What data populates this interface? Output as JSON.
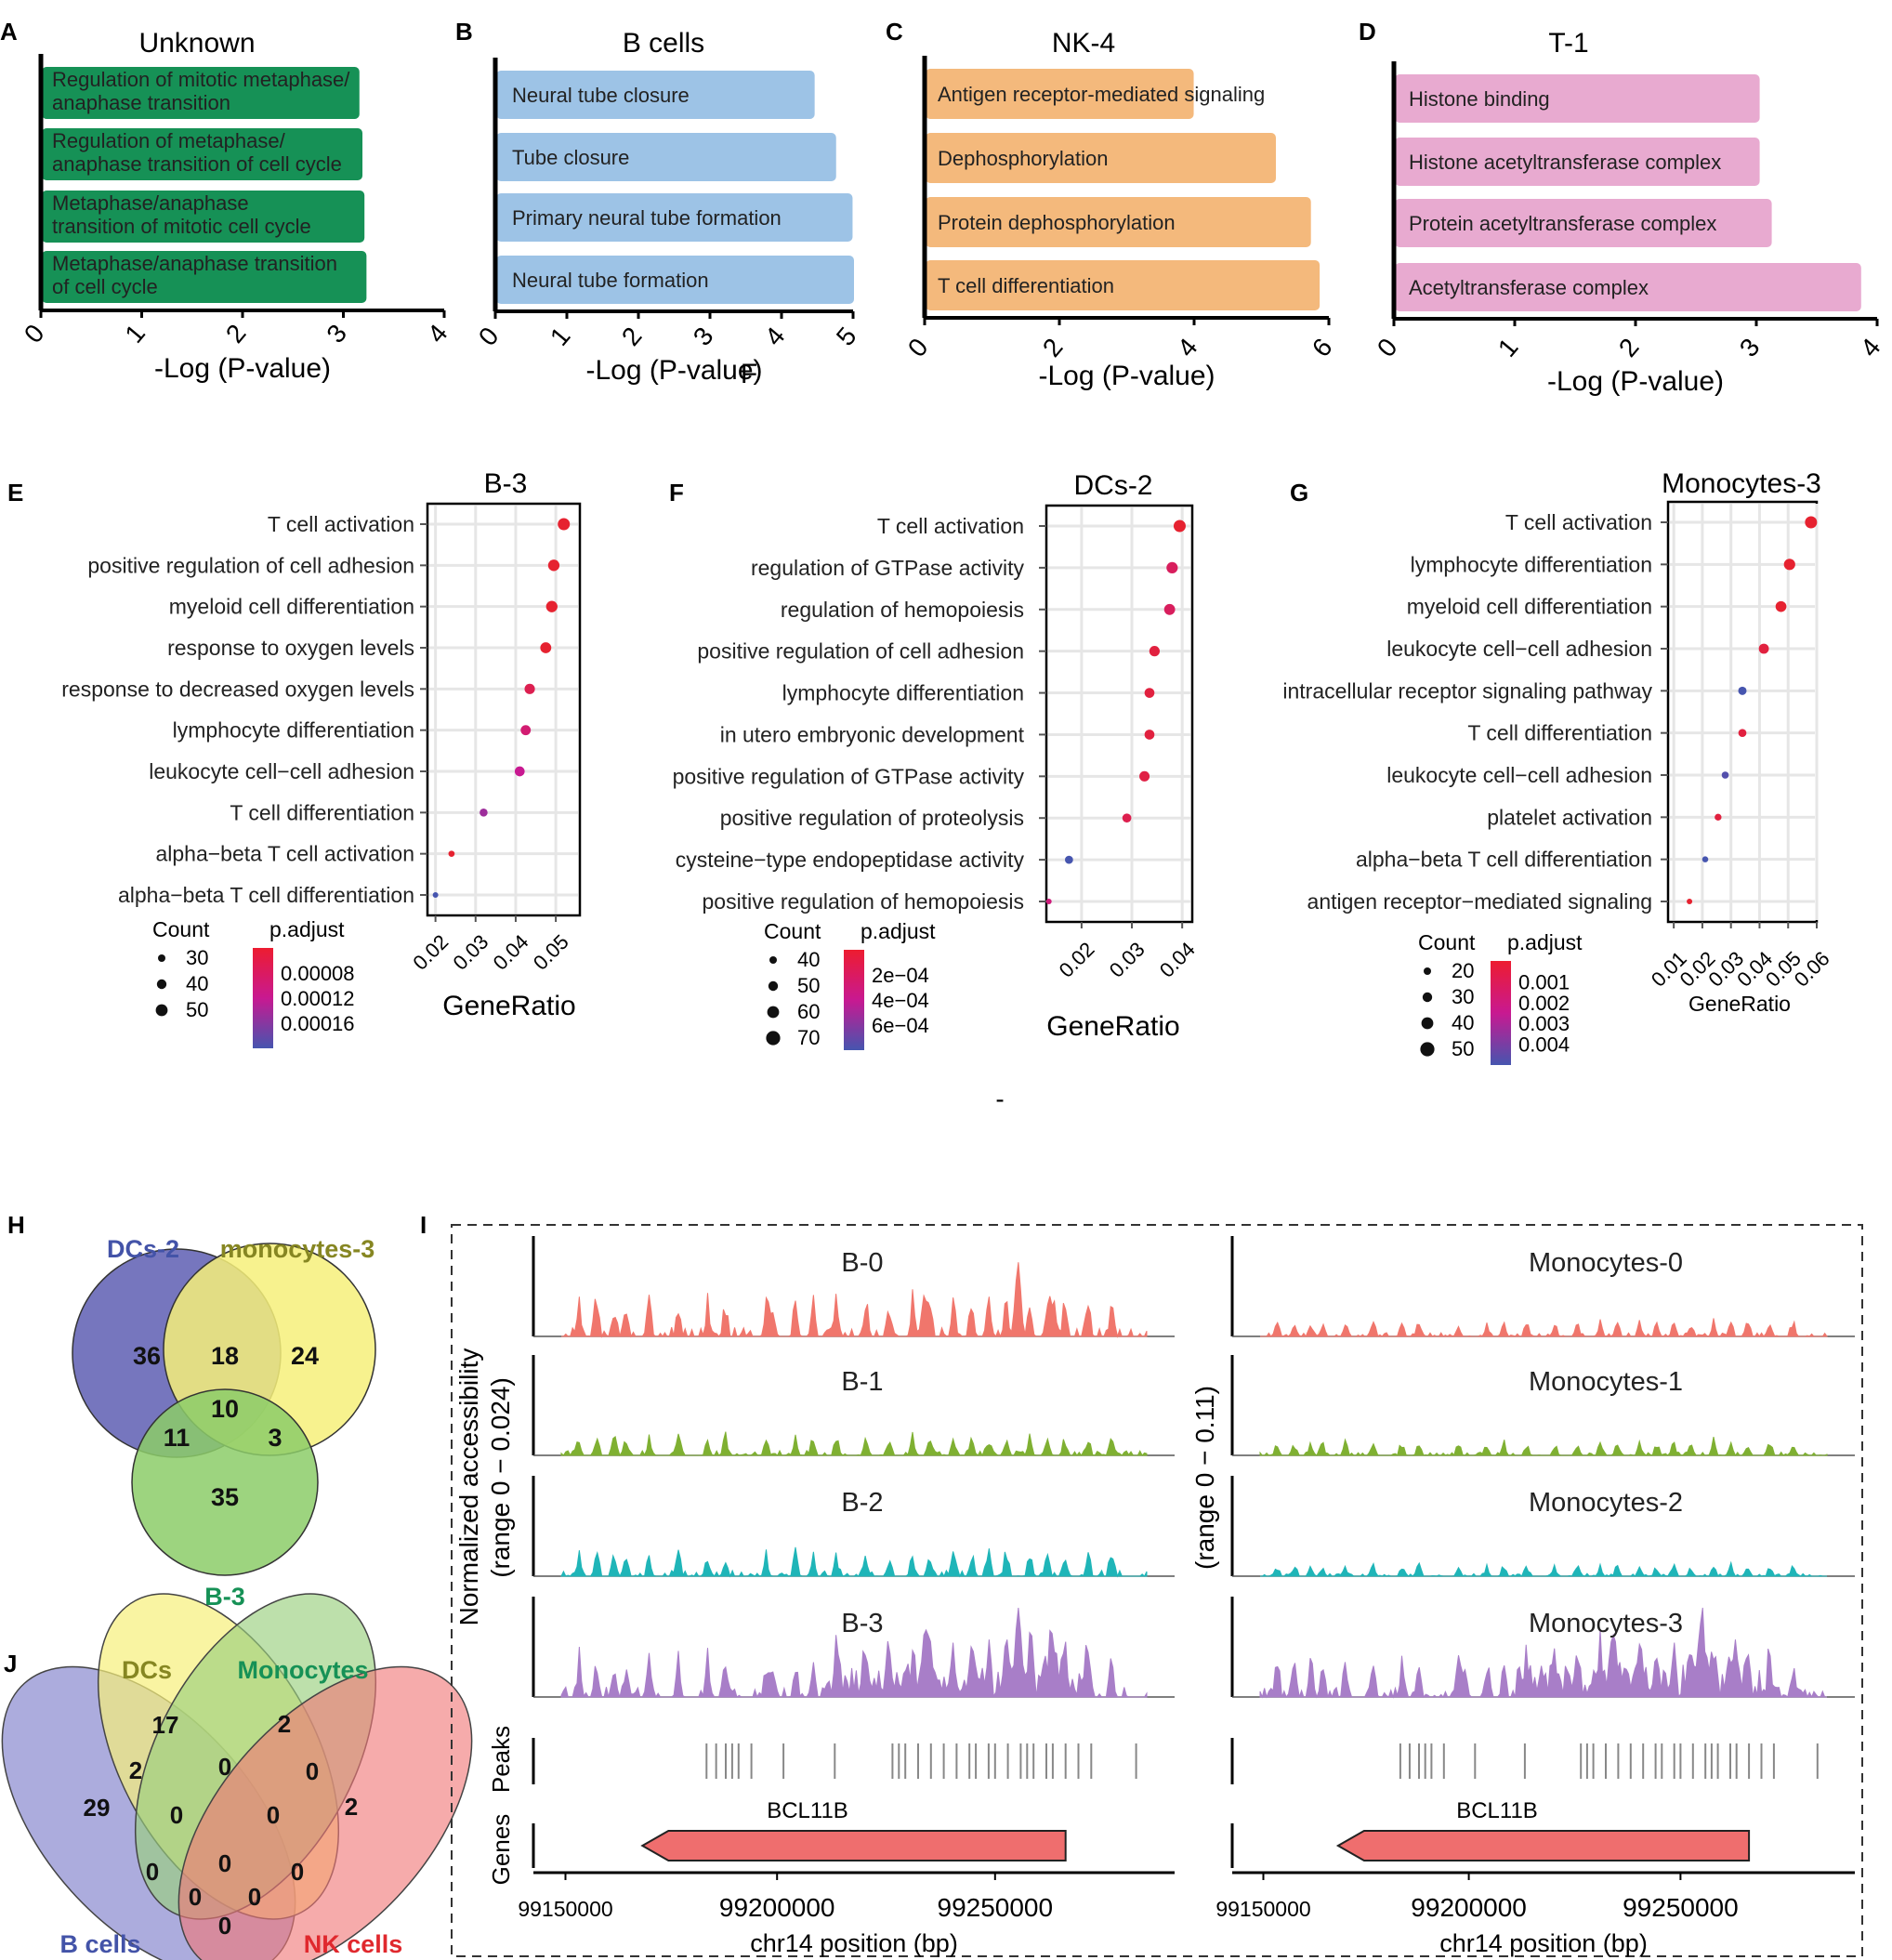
{
  "chart_data": [
    {
      "panel": "A",
      "type": "bar",
      "orientation": "horizontal",
      "title": "Unknown",
      "xlabel": "-Log (P-value)",
      "xlim": [
        0,
        4
      ],
      "xticks": [
        "0",
        "1",
        "2",
        "3",
        "4"
      ],
      "color": "#169156",
      "categories": [
        [
          "Regulation of mitotic metaphase/",
          "anaphase transition"
        ],
        [
          "Regulation of metaphase/",
          "anaphase transition of cell cycle"
        ],
        [
          "Metaphase/anaphase",
          "transition of mitotic cell cycle"
        ],
        [
          "Metaphase/anaphase transition",
          "of cell cycle"
        ]
      ],
      "values": [
        3.15,
        3.18,
        3.2,
        3.22
      ]
    },
    {
      "panel": "B",
      "type": "bar",
      "orientation": "horizontal",
      "title": "B cells",
      "xlabel": "-Log (P-value)",
      "xlim": [
        0,
        5
      ],
      "xticks": [
        "0",
        "1",
        "2",
        "3",
        "4",
        "5"
      ],
      "color": "#9dc3e6",
      "categories": [
        [
          "Neural tube closure"
        ],
        [
          "Tube closure"
        ],
        [
          "Primary neural tube formation"
        ],
        [
          "Neural tube formation"
        ]
      ],
      "values": [
        4.45,
        4.75,
        4.98,
        5.0
      ]
    },
    {
      "panel": "C",
      "type": "bar",
      "orientation": "horizontal",
      "title": "NK-4",
      "xlabel": "-Log (P-value)",
      "xlim": [
        0,
        6
      ],
      "xticks": [
        "0",
        "2",
        "4",
        "6"
      ],
      "color": "#f4b97c",
      "categories": [
        [
          "Antigen receptor-mediated signaling"
        ],
        [
          "Dephosphorylation"
        ],
        [
          "Protein dephosphorylation"
        ],
        [
          "T cell differentiation"
        ]
      ],
      "values": [
        3.98,
        5.2,
        5.72,
        5.85
      ]
    },
    {
      "panel": "D",
      "type": "bar",
      "orientation": "horizontal",
      "title": "T-1",
      "xlabel": "-Log (P-value)",
      "xlim": [
        0,
        4
      ],
      "xticks": [
        "0",
        "1",
        "2",
        "3",
        "4"
      ],
      "color": "#e8aad0",
      "categories": [
        [
          "Histone binding"
        ],
        [
          "Histone acetyltransferase complex"
        ],
        [
          "Protein acetyltransferase complex"
        ],
        [
          "Acetyltransferase complex"
        ]
      ],
      "values": [
        3.02,
        3.02,
        3.12,
        3.86
      ]
    },
    {
      "panel": "E",
      "type": "scatter",
      "title": "B-3",
      "xlabel": "GeneRatio",
      "xlim": [
        0.018,
        0.056
      ],
      "xticks": [
        0.02,
        0.03,
        0.04,
        0.05
      ],
      "xtick_labels": [
        "0.02",
        "0.03",
        "0.04",
        "0.05"
      ],
      "categories": [
        "T cell activation",
        "positive regulation of cell adhesion",
        "myeloid cell differentiation",
        "response to oxygen levels",
        "response to decreased oxygen levels",
        "lymphocyte differentiation",
        "leukocyte cell−cell adhesion",
        "T cell differentiation",
        "alpha−beta T cell activation",
        "alpha−beta T cell differentiation"
      ],
      "x": [
        0.052,
        0.0495,
        0.049,
        0.0475,
        0.0435,
        0.0425,
        0.041,
        0.032,
        0.024,
        0.02
      ],
      "count": [
        55,
        52,
        52,
        50,
        47,
        46,
        45,
        36,
        28,
        25
      ],
      "padj": [
        6e-05,
        6e-05,
        6e-05,
        6e-05,
        8e-05,
        0.0001,
        0.00012,
        0.00014,
        6e-05,
        0.00018
      ],
      "count_legend": {
        "title": "Count",
        "labels": [
          "30",
          "40",
          "50"
        ]
      },
      "color_legend": {
        "title": "p.adjust",
        "labels": [
          "0.00008",
          "0.00012",
          "0.00016"
        ]
      }
    },
    {
      "panel": "F",
      "type": "scatter",
      "title": "DCs-2",
      "xlabel": "GeneRatio",
      "xlim": [
        0.013,
        0.042
      ],
      "xticks": [
        0.02,
        0.03,
        0.04
      ],
      "xtick_labels": [
        "0.02",
        "0.03",
        "0.04"
      ],
      "categories": [
        "T cell activation",
        "regulation of GTPase activity",
        "regulation of hemopoiesis",
        "positive regulation of cell adhesion",
        "lymphocyte differentiation",
        "in utero embryonic development",
        "positive regulation of GTPase activity",
        "positive regulation of proteolysis",
        "cysteine−type endopeptidase activity",
        "positive regulation of hemopoiesis"
      ],
      "x": [
        0.0395,
        0.038,
        0.0375,
        0.0345,
        0.0335,
        0.0335,
        0.0325,
        0.029,
        0.0175,
        0.0135
      ],
      "count": [
        72,
        68,
        66,
        63,
        60,
        60,
        62,
        55,
        50,
        36
      ],
      "padj": [
        5e-05,
        0.0002,
        0.0002,
        0.0001,
        0.0001,
        0.0001,
        0.00012,
        0.00015,
        0.0007,
        0.0003
      ],
      "count_legend": {
        "title": "Count",
        "labels": [
          "40",
          "50",
          "60",
          "70"
        ]
      },
      "color_legend": {
        "title": "p.adjust",
        "labels": [
          "2e−04",
          "4e−04",
          "6e−04"
        ]
      }
    },
    {
      "panel": "G",
      "type": "scatter",
      "title": "Monocytes-3",
      "xlabel": "GeneRatio",
      "xlim": [
        0.008,
        0.06
      ],
      "xticks": [
        0.01,
        0.02,
        0.03,
        0.04,
        0.05,
        0.06
      ],
      "xtick_labels": [
        "0.01",
        "0.02",
        "0.03",
        "0.04",
        "0.05",
        "0.06"
      ],
      "categories": [
        "T cell activation",
        "lymphocyte differentiation",
        "myeloid cell differentiation",
        "leukocyte cell−cell adhesion",
        "intracellular receptor signaling pathway",
        "T cell differentiation",
        "leukocyte cell−cell adhesion",
        "platelet activation",
        "alpha−beta T cell differentiation",
        "antigen receptor−mediated signaling"
      ],
      "x": [
        0.058,
        0.0505,
        0.0475,
        0.0415,
        0.034,
        0.034,
        0.028,
        0.0255,
        0.021,
        0.0155
      ],
      "count": [
        48,
        45,
        43,
        40,
        33,
        32,
        28,
        27,
        24,
        22
      ],
      "padj": [
        0.0005,
        0.0005,
        0.0005,
        0.0008,
        0.0044,
        0.0008,
        0.0042,
        0.0008,
        0.0044,
        0.0005
      ],
      "count_legend": {
        "title": "Count",
        "labels": [
          "20",
          "30",
          "40",
          "50"
        ]
      },
      "color_legend": {
        "title": "p.adjust",
        "labels": [
          "0.001",
          "0.002",
          "0.003",
          "0.004"
        ]
      }
    }
  ],
  "panel_letters": [
    "A",
    "B",
    "C",
    "D",
    "E",
    "F",
    "G",
    "H",
    "I",
    "J"
  ],
  "venn_h": {
    "labels": [
      {
        "text": "DCs-2",
        "color": "#4353a8"
      },
      {
        "text": "monocytes-3",
        "color": "#868622"
      },
      {
        "text": "B-3",
        "color": "#169156"
      }
    ],
    "counts": [
      "36",
      "18",
      "24",
      "10",
      "11",
      "3",
      "35"
    ]
  },
  "venn_j": {
    "labels": [
      {
        "text": "DCs",
        "color": "#868622"
      },
      {
        "text": "Monocytes",
        "color": "#169156"
      },
      {
        "text": "B cells",
        "color": "#4353a8"
      },
      {
        "text": "NK cells",
        "color": "#e0282d"
      }
    ],
    "counts": [
      "17",
      "2",
      "2",
      "29",
      "0",
      "0",
      "2",
      "0",
      "0",
      "0",
      "0",
      "0",
      "0",
      "0",
      "0"
    ]
  },
  "panel_i": {
    "y_axis_left": [
      "Normalized accessibility",
      "(range 0 − 0.024)"
    ],
    "y_axis_right": "(range 0 − 0.11)",
    "left_tracks": [
      "B-0",
      "B-1",
      "B-2",
      "B-3"
    ],
    "right_tracks": [
      "Monocytes-0",
      "Monocytes-1",
      "Monocytes-2",
      "Monocytes-3"
    ],
    "track_colors": [
      "#f0766c",
      "#7fb032",
      "#1fb5b8",
      "#a87ec8"
    ],
    "peaks_label": "Peaks",
    "genes_label": "Genes",
    "gene_name": "BCL11B",
    "gene_color": "#ef6e6e",
    "x_ticks": [
      "99150000",
      "99200000",
      "99250000"
    ],
    "x_label": "chr14 position (bp)"
  },
  "stray_marks": [
    "F",
    "-"
  ]
}
